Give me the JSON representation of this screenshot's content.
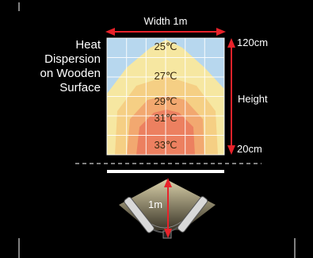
{
  "title_lines": [
    "Heat",
    "Dispersion",
    "on Wooden",
    "Surface"
  ],
  "width_label": "Width 1m",
  "height_label": "Height",
  "top_mark": "120cm",
  "bottom_mark": "20cm",
  "distance_label": "1m",
  "temperatures": [
    "25℃",
    "27℃",
    "29℃",
    "31℃",
    "33℃"
  ],
  "colors": {
    "background": "#000000",
    "cool_zone": "#b7d7ee",
    "warm_1": "#f6e7a1",
    "warm_2": "#f5cf84",
    "warm_3": "#f2a870",
    "hot": "#ec8060",
    "arrow": "#e8222a",
    "text": "#ffffff"
  },
  "icons": [
    "double-arrow-horizontal-icon",
    "double-arrow-vertical-icon",
    "heater-lamp-icon"
  ]
}
